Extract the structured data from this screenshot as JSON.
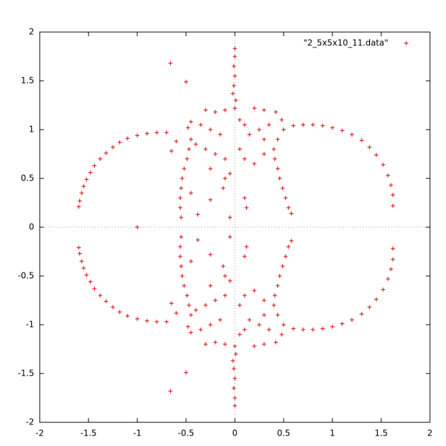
{
  "chart_data": {
    "type": "scatter",
    "xlim": [
      -2,
      2
    ],
    "ylim": [
      -2,
      2
    ],
    "xticks": [
      -2,
      -1.5,
      -1,
      -0.5,
      0,
      0.5,
      1,
      1.5,
      2
    ],
    "yticks": [
      -2,
      -1.5,
      -1,
      -0.5,
      0,
      0.5,
      1,
      1.5,
      2
    ],
    "zero_axes": true,
    "legend": "top-right",
    "series": [
      {
        "name": "\"2_5x5x10_11.data\"",
        "color": "#dd0000",
        "x": [
          -1.6,
          -1.59,
          -1.57,
          -1.55,
          -1.52,
          -1.48,
          -1.44,
          -1.38,
          -1.32,
          -1.25,
          -1.18,
          -1.1,
          -1.0,
          -0.9,
          -0.8,
          -0.7,
          0.6,
          0.7,
          0.8,
          0.9,
          1.0,
          1.1,
          1.2,
          1.3,
          1.38,
          1.45,
          1.52,
          1.57,
          1.6,
          1.62,
          1.62,
          0,
          0,
          -0.01,
          0,
          -0.01,
          -0.02,
          0.01,
          0,
          -0.55,
          -0.56,
          -0.56,
          -0.55,
          -0.54,
          -0.52,
          -0.49,
          -0.47,
          -0.45,
          -0.48,
          -0.45,
          0.58,
          0.55,
          0.52,
          0.49,
          0.46,
          0.44,
          0.41,
          0.4,
          0.44,
          0.5,
          0.48,
          0.42,
          -0.66,
          -0.5,
          -0.3,
          -0.2,
          -0.1,
          0.2,
          0.3,
          -0.35,
          -0.25,
          -0.15,
          0.15,
          0.25,
          0.35,
          -0.3,
          -0.2,
          -0.1,
          0.1,
          0.2,
          0.3,
          -0.4,
          -0.65,
          -0.6,
          -0.25,
          -0.05,
          0.05,
          -0.12,
          0.1,
          -0.25,
          -0.38,
          -0.05,
          0.12,
          -0.1,
          0.05,
          0.1,
          -0.45,
          0.3,
          -1.0,
          -1.6,
          -1.59,
          -1.57,
          -1.55,
          -1.52,
          -1.48,
          -1.44,
          -1.38,
          -1.32,
          -1.25,
          -1.18,
          -1.1,
          -1.0,
          -0.9,
          -0.8,
          -0.7,
          0.6,
          0.7,
          0.8,
          0.9,
          1.0,
          1.1,
          1.2,
          1.3,
          1.38,
          1.45,
          1.52,
          1.57,
          1.6,
          1.62,
          1.62,
          0,
          0,
          -0.01,
          0,
          -0.01,
          -0.02,
          0.01,
          0,
          -0.55,
          -0.56,
          -0.56,
          -0.55,
          -0.54,
          -0.52,
          -0.49,
          -0.47,
          -0.45,
          -0.48,
          -0.45,
          0.58,
          0.55,
          0.52,
          0.49,
          0.46,
          0.44,
          0.41,
          0.4,
          0.44,
          0.5,
          0.48,
          0.42,
          -0.66,
          -0.5,
          -0.3,
          -0.2,
          -0.1,
          0.2,
          0.3,
          -0.35,
          -0.25,
          -0.15,
          0.15,
          0.25,
          0.35,
          -0.3,
          -0.2,
          -0.1,
          0.1,
          0.2,
          0.3,
          -0.4,
          -0.65,
          -0.6,
          -0.25,
          -0.05,
          0.05,
          -0.12,
          0.1,
          -0.25,
          -0.38,
          -0.05,
          0.12,
          -0.1,
          0.05,
          0.1,
          -0.45,
          0.3
        ],
        "values": [
          0.21,
          0.27,
          0.35,
          0.42,
          0.49,
          0.56,
          0.63,
          0.7,
          0.76,
          0.82,
          0.87,
          0.91,
          0.94,
          0.96,
          0.97,
          0.97,
          1.04,
          1.05,
          1.05,
          1.04,
          1.02,
          0.99,
          0.95,
          0.89,
          0.82,
          0.74,
          0.64,
          0.53,
          0.43,
          0.33,
          0.22,
          1.83,
          1.75,
          1.65,
          1.55,
          1.45,
          1.37,
          1.3,
          1.22,
          0.1,
          0.2,
          0.3,
          0.4,
          0.5,
          0.6,
          0.7,
          0.8,
          0.9,
          1.02,
          1.08,
          0.14,
          0.2,
          0.3,
          0.4,
          0.5,
          0.6,
          0.7,
          0.8,
          0.9,
          1.0,
          1.1,
          1.18,
          1.68,
          1.49,
          1.2,
          1.18,
          1.2,
          1.22,
          1.2,
          1.05,
          1.0,
          0.95,
          0.95,
          1.0,
          1.05,
          0.8,
          0.75,
          0.7,
          0.7,
          0.65,
          0.75,
          0.85,
          0.78,
          0.88,
          0.6,
          0.55,
          0.8,
          0.4,
          0.3,
          0.28,
          0.13,
          0.1,
          0.2,
          0.5,
          1.1,
          1.05,
          0.35,
          0.9,
          0,
          -0.21,
          -0.27,
          -0.35,
          -0.42,
          -0.49,
          -0.56,
          -0.63,
          -0.7,
          -0.76,
          -0.82,
          -0.87,
          -0.91,
          -0.94,
          -0.96,
          -0.97,
          -0.97,
          -1.04,
          -1.05,
          -1.05,
          -1.04,
          -1.02,
          -0.99,
          -0.95,
          -0.89,
          -0.82,
          -0.74,
          -0.64,
          -0.53,
          -0.43,
          -0.33,
          -0.22,
          -1.83,
          -1.75,
          -1.65,
          -1.55,
          -1.45,
          -1.37,
          -1.3,
          -1.22,
          -0.1,
          -0.2,
          -0.3,
          -0.4,
          -0.5,
          -0.6,
          -0.7,
          -0.8,
          -0.9,
          -1.02,
          -1.08,
          -0.14,
          -0.2,
          -0.3,
          -0.4,
          -0.5,
          -0.6,
          -0.7,
          -0.8,
          -0.9,
          -1.0,
          -1.1,
          -1.18,
          -1.68,
          -1.49,
          -1.2,
          -1.18,
          -1.2,
          -1.22,
          -1.2,
          -1.05,
          -1.0,
          -0.95,
          -0.95,
          -1.0,
          -1.05,
          -0.8,
          -0.75,
          -0.7,
          -0.7,
          -0.65,
          -0.75,
          -0.85,
          -0.78,
          -0.88,
          -0.6,
          -0.55,
          -0.8,
          -0.4,
          -0.3,
          -0.28,
          -0.13,
          -0.1,
          -0.2,
          -0.5,
          -1.1,
          -1.05,
          -0.35,
          -0.9
        ]
      }
    ]
  }
}
